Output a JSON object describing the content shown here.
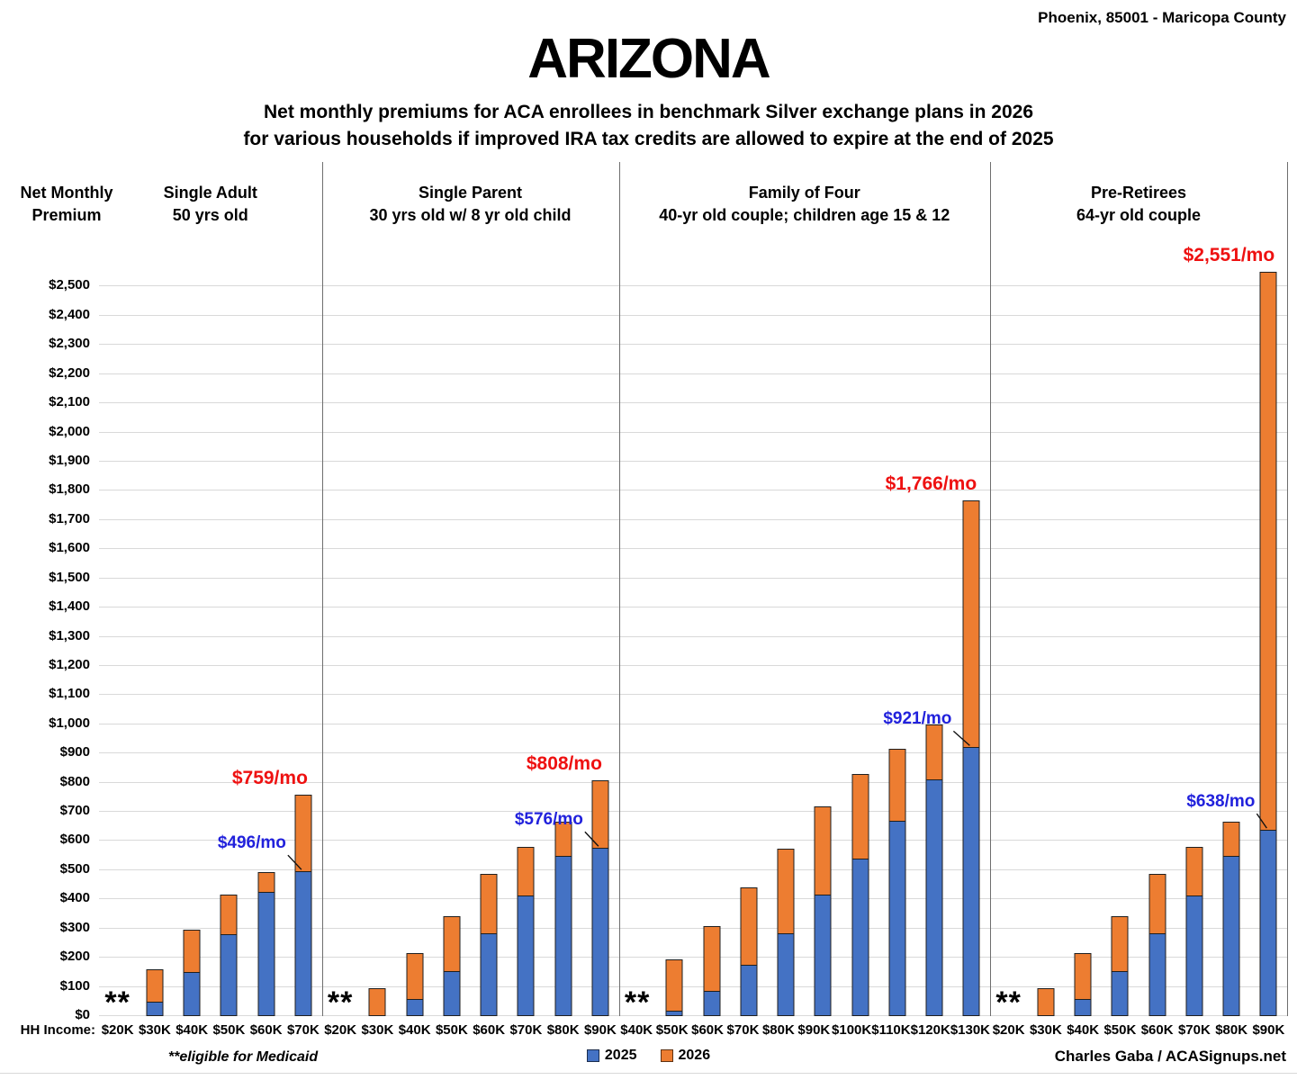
{
  "header": {
    "location": "Phoenix, 85001 - Maricopa County",
    "title": "ARIZONA",
    "subtitle_line1": "Net monthly premiums for ACA enrollees in benchmark Silver exchange plans in 2026",
    "subtitle_line2": "for various households if improved IRA tax credits are allowed to expire at the end of 2025"
  },
  "axis": {
    "y_title_line1": "Net Monthly",
    "y_title_line2": "Premium",
    "hh_income_label": "HH Income:"
  },
  "legend": [
    {
      "label": "2025",
      "color": "#4472C4"
    },
    {
      "label": "2026",
      "color": "#ED7D31"
    }
  ],
  "footer": {
    "medicaid_note": "**eligible for Medicaid",
    "credit": "Charles Gaba / ACASignups.net"
  },
  "colors": {
    "series_2025": "#4472C4",
    "series_2026": "#ED7D31",
    "annotation_2026": "#EE1111",
    "annotation_2025": "#2121DC",
    "gridline": "#D9D9D9",
    "divider": "#6E6E6E"
  },
  "chart_data": {
    "type": "bar",
    "stacked": true,
    "grid": true,
    "legend_position": "bottom-center",
    "medicaid_marker": "**",
    "y_axis": {
      "min": 0,
      "max": 2500,
      "step": 100,
      "plot_max": 2600,
      "tick_prefix": "$"
    },
    "series_names": [
      "2025",
      "2026"
    ],
    "groups": [
      {
        "title": "Single Adult",
        "desc": "50 yrs old",
        "categories": [
          "$20K",
          "$30K",
          "$40K",
          "$50K",
          "$60K",
          "$70K"
        ],
        "v2025": [
          null,
          50,
          152,
          280,
          425,
          496
        ],
        "v2026": [
          null,
          160,
          297,
          417,
          495,
          759
        ],
        "annotations": [
          {
            "category": "$70K",
            "series": "2026",
            "text": "$759/mo",
            "dx": -37
          },
          {
            "category": "$70K",
            "series": "2025",
            "text": "$496/mo",
            "dx": -57,
            "leader": true
          }
        ]
      },
      {
        "title": "Single Parent",
        "desc": "30 yrs old w/ 8 yr old child",
        "categories": [
          "$20K",
          "$30K",
          "$40K",
          "$50K",
          "$60K",
          "$70K",
          "$80K",
          "$90K"
        ],
        "v2025": [
          null,
          0,
          60,
          155,
          284,
          413,
          550,
          576
        ],
        "v2026": [
          null,
          95,
          215,
          343,
          488,
          580,
          665,
          808
        ],
        "annotations": [
          {
            "category": "$90K",
            "series": "2026",
            "text": "$808/mo",
            "dx": -40
          },
          {
            "category": "$90K",
            "series": "2025",
            "text": "$576/mo",
            "dx": -57,
            "leader": true
          }
        ]
      },
      {
        "title": "Family of Four",
        "desc": "40-yr old couple; children age 15 & 12",
        "categories": [
          "$40K",
          "$50K",
          "$60K",
          "$70K",
          "$80K",
          "$90K",
          "$100K",
          "$110K",
          "$120K",
          "$130K"
        ],
        "v2025": [
          null,
          20,
          85,
          175,
          283,
          415,
          540,
          670,
          812,
          921
        ],
        "v2026": [
          null,
          195,
          310,
          440,
          575,
          720,
          830,
          915,
          1000,
          1766
        ],
        "annotations": [
          {
            "category": "$130K",
            "series": "2026",
            "text": "$1,766/mo",
            "dx": -45
          },
          {
            "category": "$130K",
            "series": "2025",
            "text": "$921/mo",
            "dx": -60,
            "leader": true
          }
        ]
      },
      {
        "title": "Pre-Retirees",
        "desc": "64-yr old couple",
        "categories": [
          "$20K",
          "$30K",
          "$40K",
          "$50K",
          "$60K",
          "$70K",
          "$80K",
          "$90K"
        ],
        "v2025": [
          null,
          0,
          60,
          155,
          284,
          413,
          550,
          638
        ],
        "v2026": [
          null,
          95,
          215,
          343,
          488,
          580,
          665,
          2551
        ],
        "annotations": [
          {
            "category": "$90K",
            "series": "2026",
            "text": "$2,551/mo",
            "dx": -44
          },
          {
            "category": "$90K",
            "series": "2025",
            "text": "$638/mo",
            "dx": -53,
            "leader": true
          }
        ]
      }
    ]
  }
}
